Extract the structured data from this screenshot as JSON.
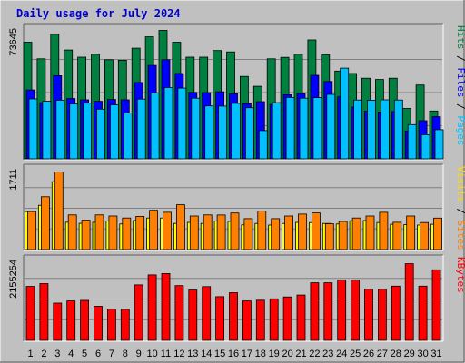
{
  "chart_data": {
    "type": "bar",
    "title": "Daily usage for July 2024",
    "categories": [
      "1",
      "2",
      "3",
      "4",
      "5",
      "6",
      "7",
      "8",
      "9",
      "10",
      "11",
      "12",
      "13",
      "14",
      "15",
      "16",
      "17",
      "18",
      "19",
      "20",
      "21",
      "22",
      "23",
      "24",
      "25",
      "26",
      "27",
      "28",
      "29",
      "30",
      "31"
    ],
    "weekend_days": [
      "6",
      "7",
      "13",
      "14",
      "20",
      "21",
      "27",
      "28"
    ],
    "panels": [
      {
        "id": "hits",
        "max_label": "73645",
        "ylim": [
          0,
          73645
        ],
        "side_labels": [
          {
            "text": "Pages",
            "color": "#00c0ff"
          },
          {
            "text": "Files",
            "color": "#0000ff"
          },
          {
            "text": "Hits",
            "color": "#008040"
          }
        ],
        "series": [
          {
            "name": "Hits",
            "color": "#008040",
            "values": [
              64800,
              55600,
              69200,
              60500,
              56500,
              58100,
              55100,
              54800,
              61500,
              67800,
              71400,
              64800,
              56500,
              56500,
              60200,
              59400,
              45800,
              40300,
              55600,
              56400,
              58100,
              66100,
              57900,
              48800,
              47400,
              44800,
              44100,
              44800,
              28000,
              41000,
              26600
            ]
          },
          {
            "name": "Files",
            "color": "#0000ff",
            "values": [
              38300,
              31200,
              46200,
              33500,
              32800,
              32000,
              33000,
              32800,
              42400,
              51900,
              55100,
              47400,
              36900,
              36800,
              37300,
              36200,
              30600,
              31800,
              30200,
              35600,
              36300,
              46400,
              43000,
              34500,
              28800,
              26500,
              26000,
              26300,
              15500,
              21200,
              23400
            ]
          },
          {
            "name": "Pages",
            "color": "#00c0ff",
            "values": [
              33300,
              32000,
              32600,
              30500,
              30900,
              27600,
              30000,
              25500,
              33200,
              36600,
              39600,
              39300,
              33700,
              29400,
              29300,
              30800,
              28400,
              15700,
              31200,
              34100,
              33700,
              34000,
              35800,
              50400,
              32700,
              32600,
              32800,
              32700,
              19000,
              13400,
              16200
            ]
          }
        ]
      },
      {
        "id": "visits",
        "max_label": "1711",
        "ylim": [
          0,
          1711
        ],
        "side_labels": [
          {
            "text": "Sites",
            "color": "#ff8000"
          },
          {
            "text": "Visits",
            "color": "#ffd700"
          }
        ],
        "series": [
          {
            "name": "Visits",
            "color": "#ffff00",
            "values": [
              788,
              918,
              1406,
              566,
              543,
              566,
              595,
              530,
              601,
              654,
              654,
              542,
              565,
              542,
              590,
              584,
              512,
              542,
              507,
              541,
              564,
              560,
              542,
              530,
              596,
              601,
              560,
              524,
              518,
              507,
              524
            ]
          },
          {
            "name": "Sites",
            "color": "#ff8000",
            "values": [
              788,
              1094,
              1609,
              719,
              610,
              719,
              695,
              654,
              689,
              815,
              772,
              928,
              695,
              719,
              716,
              758,
              642,
              797,
              642,
              695,
              736,
              760,
              536,
              582,
              654,
              695,
              772,
              566,
              695,
              560,
              653
            ]
          }
        ]
      },
      {
        "id": "kbytes",
        "max_label": "2155254",
        "ylim": [
          0,
          2155254
        ],
        "side_labels": [
          {
            "text": "KBytes",
            "color": "#ff0000"
          }
        ],
        "series": [
          {
            "name": "KBytes",
            "color": "#ff0000",
            "values": [
              1407000,
              1480000,
              970000,
              1027000,
              1043000,
              889000,
              819000,
              809000,
              1447000,
              1707000,
              1742000,
              1427000,
              1313000,
              1401000,
              1139000,
              1244000,
              1027000,
              1048000,
              1083000,
              1133000,
              1183000,
              1502000,
              1502000,
              1573000,
              1573000,
              1333000,
              1333000,
              1413000,
              2000000,
              1413000,
              1840000
            ]
          }
        ]
      }
    ],
    "colors": {
      "background": "#c0c0c0",
      "plot_background": "#c0c0c0",
      "gridline": "#808080",
      "weekday_tick": "#000000",
      "weekend_tick": "#00805c"
    }
  }
}
